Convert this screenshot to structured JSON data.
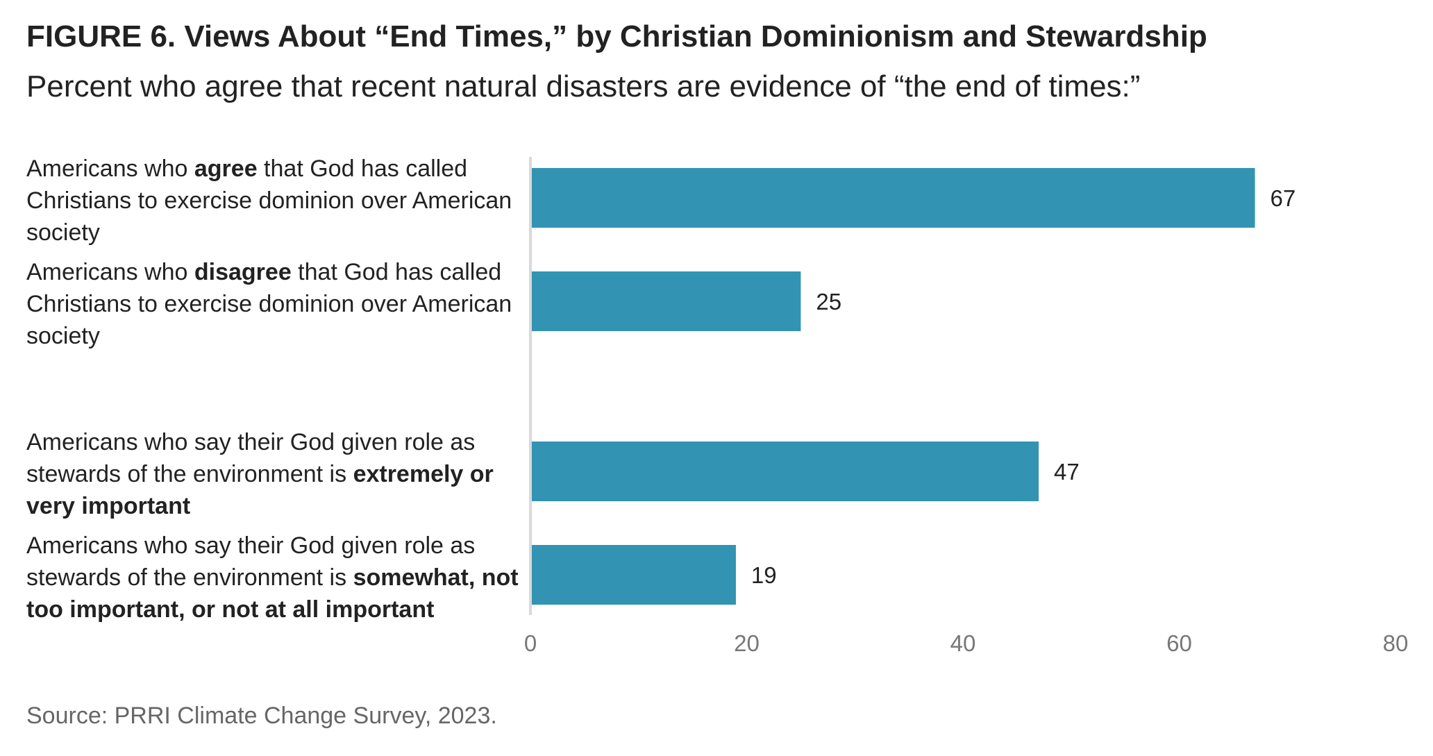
{
  "title": "FIGURE 6. Views About “End Times,” by Christian Dominionism and Stewardship",
  "subtitle": "Percent who agree that recent natural disasters are evidence of “the end of times:”",
  "source": "Source: PRRI Climate Change Survey, 2023.",
  "colors": {
    "bar": "#3293b3",
    "axis": "#d9d9d9"
  },
  "labels": [
    {
      "pre": "Americans who ",
      "bold": "agree",
      "post": " that God has called Christians to exercise dominion over American society"
    },
    {
      "pre": "Americans who ",
      "bold": "disagree",
      "post": " that God has called Christians to exercise dominion over American society"
    },
    {
      "pre": "Americans who say their God given role as stewards of the environment is ",
      "bold": "extremely or very important",
      "post": ""
    },
    {
      "pre": "Americans who say their God given role as stewards of the environment is ",
      "bold": "somewhat, not too important, or not at all important",
      "post": ""
    }
  ],
  "chart_data": {
    "type": "bar",
    "orientation": "horizontal",
    "categories": [
      "Americans who agree that God has called Christians to exercise dominion over American society",
      "Americans who disagree that God has called Christians to exercise dominion over American society",
      "Americans who say their God given role as stewards of the environment is extremely or very important",
      "Americans who say their God given role as stewards of the environment is somewhat, not too important, or not at all important"
    ],
    "values": [
      67,
      25,
      47,
      19
    ],
    "data_labels": [
      "67",
      "25",
      "47",
      "19"
    ],
    "xlim": [
      0,
      80
    ],
    "xticks": [
      0,
      20,
      40,
      60,
      80
    ],
    "grid": false
  }
}
